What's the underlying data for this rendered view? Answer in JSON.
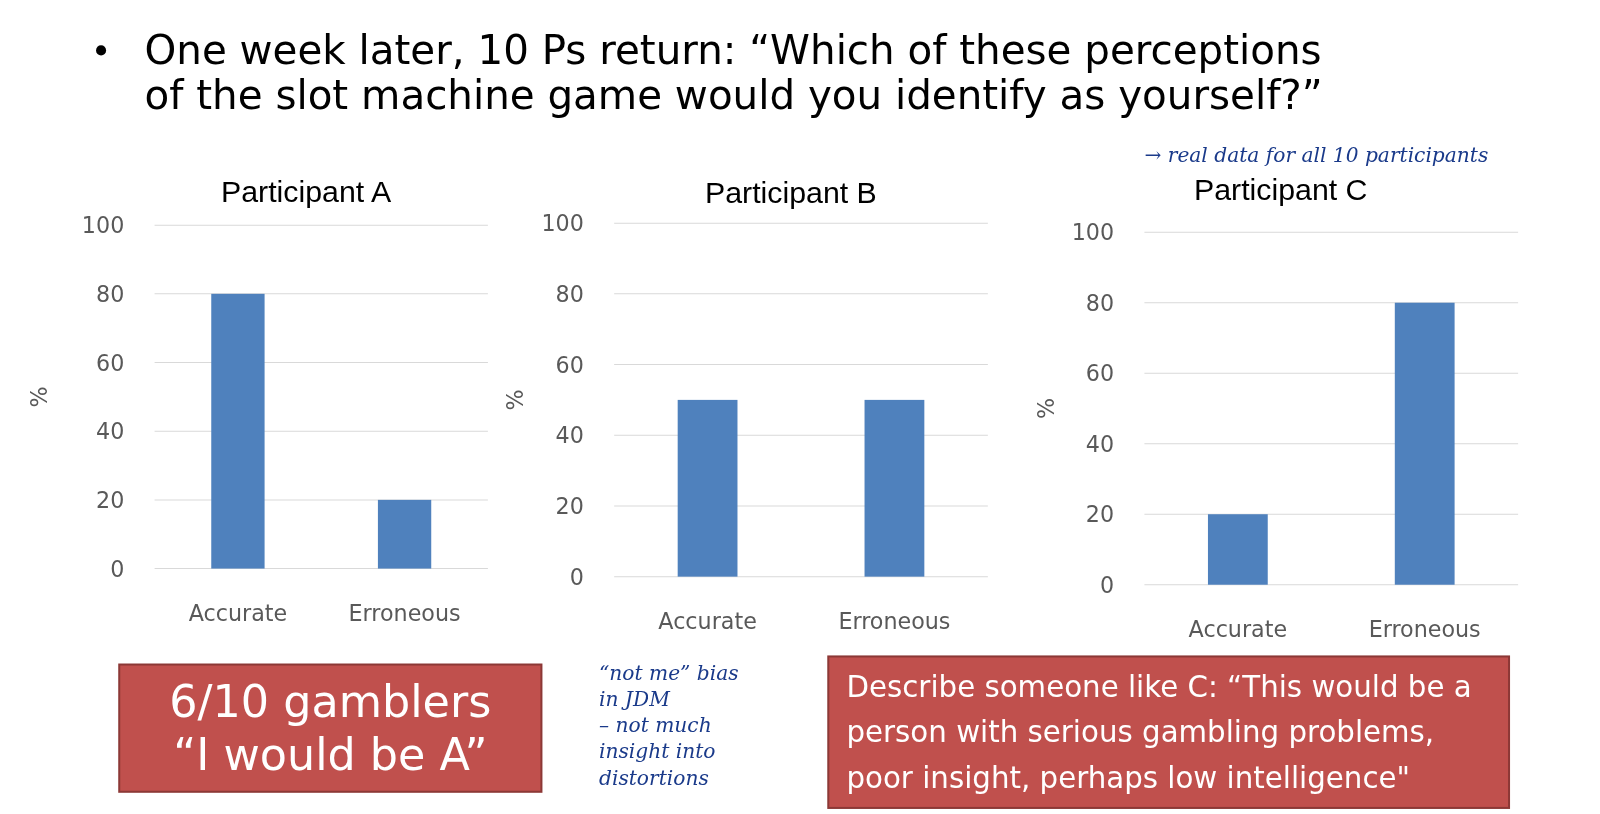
{
  "chart_data": [
    {
      "type": "bar",
      "title": "Participant A",
      "ylabel": "%",
      "categories": [
        "Accurate",
        "Erroneous"
      ],
      "values": [
        80,
        20
      ],
      "color": "#4f81bd",
      "ylim": [
        0,
        100
      ],
      "yticks": [
        0,
        20,
        40,
        60,
        80,
        100
      ],
      "grid": "y",
      "annotations": [
        "One week later, 10 Ps return: “Which of these perceptions of the slot machine game would you identify as yourself?”",
        "6/10 gamblers “I would be A”"
      ]
    },
    {
      "type": "bar",
      "title": "Participant B",
      "ylabel": "%",
      "categories": [
        "Accurate",
        "Erroneous"
      ],
      "values": [
        50,
        50
      ],
      "color": "#4f81bd",
      "ylim": [
        0,
        100
      ],
      "yticks": [
        0,
        20,
        40,
        60,
        80,
        100
      ],
      "grid": "y",
      "annotations": [
        "“not me” bias in JDM – not much insight into distortions"
      ]
    },
    {
      "type": "bar",
      "title": "Participant C",
      "ylabel": "%",
      "categories": [
        "Accurate",
        "Erroneous"
      ],
      "values": [
        20,
        80
      ],
      "color": "#4f81bd",
      "ylim": [
        0,
        100
      ],
      "yticks": [
        0,
        20,
        40,
        60,
        80,
        100
      ],
      "grid": "y",
      "annotations": [
        "→ real data for all 10 participants",
        "Describe someone like C: “This would be a person with serious gambling problems, poor insight, perhaps low intelligence\""
      ]
    }
  ]
}
